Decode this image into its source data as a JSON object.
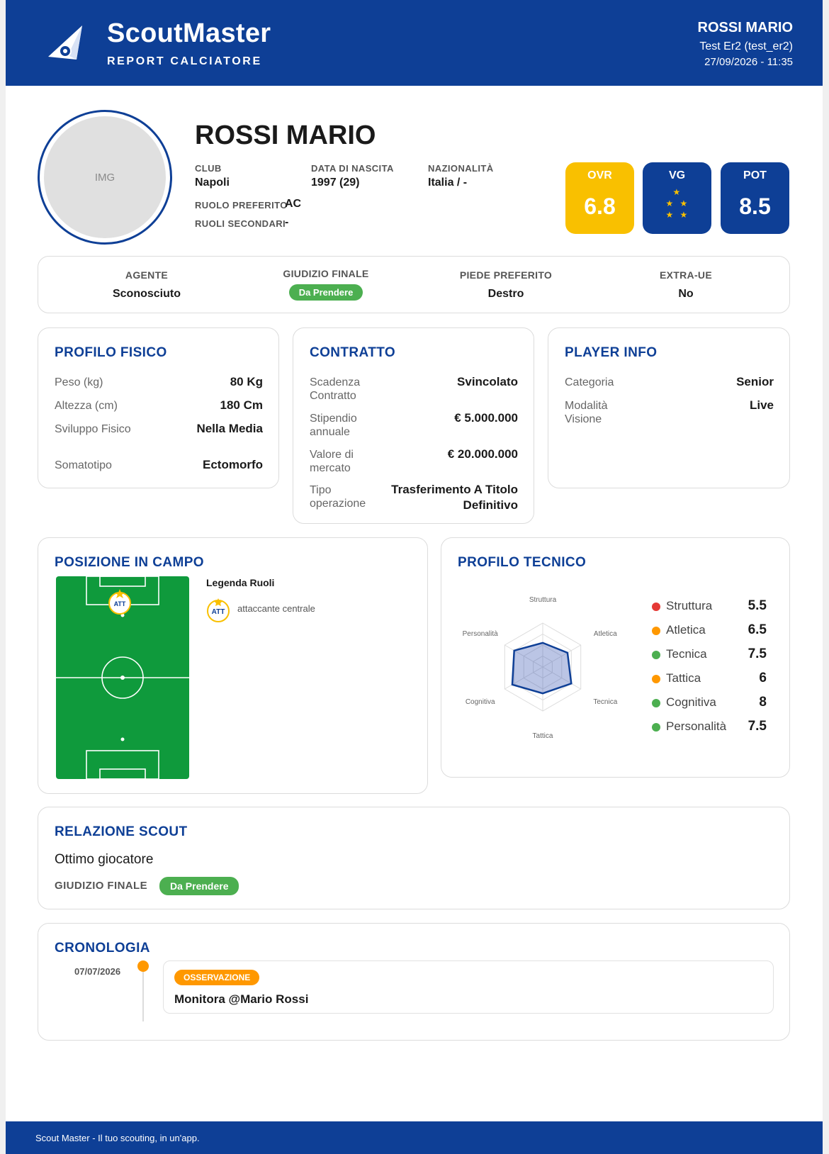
{
  "header": {
    "brand_name": "ScoutMaster",
    "brand_subtitle": "REPORT CALCIATORE",
    "user_name": "ROSSI MARIO",
    "account": "Test Er2 (test_er2)",
    "datetime": "27/09/2026 - 11:35"
  },
  "player": {
    "avatar_placeholder": "IMG",
    "name": "ROSSI MARIO",
    "club_label": "CLUB",
    "club": "Napoli",
    "birth_label": "DATA DI NASCITA",
    "birth": "1997 (29)",
    "nationality_label": "NAZIONALITÀ",
    "nationality": "Italia / -",
    "preferred_role_label": "RUOLO PREFERITO",
    "preferred_role": "AC",
    "secondary_roles_label": "RUOLI SECONDARI",
    "secondary_roles": "-"
  },
  "scores": {
    "ovr_label": "OVR",
    "ovr": "6.8",
    "vg_label": "VG",
    "vg_stars": 5,
    "pot_label": "POT",
    "pot": "8.5",
    "colors": {
      "ovr": "#f9c000",
      "vg": "#0e3f96",
      "pot": "#0e3f96"
    }
  },
  "summary": {
    "agent_label": "AGENTE",
    "agent": "Sconosciuto",
    "verdict_label": "GIUDIZIO FINALE",
    "verdict": "Da Prendere",
    "foot_label": "PIEDE PREFERITO",
    "foot": "Destro",
    "extra_ue_label": "EXTRA-UE",
    "extra_ue": "No"
  },
  "physical": {
    "title": "PROFILO FISICO",
    "rows": [
      {
        "label": "Peso (kg)",
        "value": "80 Kg"
      },
      {
        "label": "Altezza (cm)",
        "value": "180 Cm"
      },
      {
        "label": "Sviluppo Fisico",
        "value": "Nella Media"
      },
      {
        "label": "Somatotipo",
        "value": "Ectomorfo"
      }
    ]
  },
  "contract": {
    "title": "CONTRATTO",
    "rows": [
      {
        "label": "Scadenza Contratto",
        "value": "Svincolato"
      },
      {
        "label": "Stipendio annuale",
        "value": "€ 5.000.000"
      },
      {
        "label": "Valore di mercato",
        "value": "€ 20.000.000"
      },
      {
        "label": "Tipo operazione",
        "value": "Trasferimento A Titolo Definitivo"
      }
    ]
  },
  "player_info": {
    "title": "PLAYER INFO",
    "rows": [
      {
        "label": "Categoria",
        "value": "Senior"
      },
      {
        "label": "Modalità Visione",
        "value": "Live"
      }
    ]
  },
  "position": {
    "title": "POSIZIONE IN CAMPO",
    "marker": "ATT",
    "legend_title": "Legenda Ruoli",
    "legend_badge": "ATT",
    "legend_text": "attaccante centrale",
    "pitch_color": "#0f9a3c"
  },
  "technical": {
    "title": "PROFILO TECNICO",
    "skills": [
      {
        "name": "Struttura",
        "value": "5.5",
        "score": 5.5,
        "color": "#e53935"
      },
      {
        "name": "Atletica",
        "value": "6.5",
        "score": 6.5,
        "color": "#ff9800"
      },
      {
        "name": "Tecnica",
        "value": "7.5",
        "score": 7.5,
        "color": "#4caf50"
      },
      {
        "name": "Tattica",
        "value": "6",
        "score": 6,
        "color": "#ff9800"
      },
      {
        "name": "Cognitiva",
        "value": "8",
        "score": 8,
        "color": "#4caf50"
      },
      {
        "name": "Personalità",
        "value": "7.5",
        "score": 7.5,
        "color": "#4caf50"
      }
    ],
    "radar_labels": [
      "Struttura",
      "Atletica",
      "Tecnica",
      "Tattica",
      "Cognitiva",
      "Personalità"
    ],
    "radar_max": 10
  },
  "report": {
    "title": "RELAZIONE SCOUT",
    "text": "Ottimo giocatore",
    "verdict_label": "GIUDIZIO FINALE",
    "verdict": "Da Prendere"
  },
  "timeline": {
    "title": "CRONOLOGIA",
    "entries": [
      {
        "date": "07/07/2026",
        "type": "OSSERVAZIONE",
        "text": "Monitora @Mario Rossi"
      }
    ]
  },
  "footer": {
    "text": "Scout Master - Il tuo scouting, in un'app."
  }
}
